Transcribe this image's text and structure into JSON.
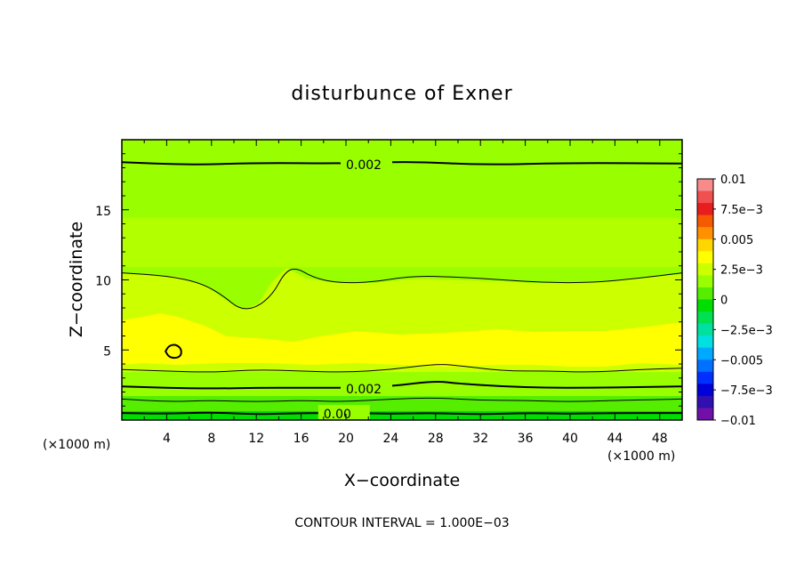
{
  "chart_data": {
    "type": "heatmap",
    "title": "disturbunce of Exner",
    "xlabel": "X−coordinate",
    "ylabel": "Z−coordinate",
    "x_unit_label_left": "(×1000 m)",
    "x_unit_label_right": "(×1000 m)",
    "xlim": [
      0,
      50
    ],
    "ylim": [
      0,
      20
    ],
    "xticks": [
      4,
      8,
      12,
      16,
      20,
      24,
      28,
      32,
      36,
      40,
      44,
      48
    ],
    "yticks": [
      5,
      10,
      15
    ],
    "footer": "CONTOUR INTERVAL = 1.000E−03",
    "colorbar": {
      "range": [
        -0.01,
        0.01
      ],
      "tick_values": [
        0.01,
        0.0075,
        0.005,
        0.0025,
        0,
        -0.0025,
        -0.005,
        -0.0075,
        -0.01
      ],
      "tick_labels": [
        "0.01",
        "7.5e−3",
        "0.005",
        "2.5e−3",
        "0",
        "−2.5e−3",
        "−0.005",
        "−7.5e−3",
        "−0.01"
      ],
      "colors": [
        "#f78a8a",
        "#f05050",
        "#e81e1e",
        "#f55a00",
        "#ff9000",
        "#ffd700",
        "#ffff00",
        "#ccff00",
        "#99ff00",
        "#55ee00",
        "#00dd00",
        "#00e050",
        "#00e0a0",
        "#00e0e0",
        "#00a8ff",
        "#0070ff",
        "#0030ff",
        "#0000d8",
        "#3010b0",
        "#7010a8"
      ]
    },
    "bands": [
      {
        "range": [
          0.003,
          0.004
        ],
        "color": "#ffff00"
      },
      {
        "range": [
          0.002,
          0.003
        ],
        "color": "#ccff00"
      },
      {
        "range": [
          0.001,
          0.002
        ],
        "color": "#99ff00"
      },
      {
        "range": [
          0.0,
          0.001
        ],
        "color": "#55ee00"
      },
      {
        "range": [
          -0.001,
          0.0
        ],
        "color": "#00dd00"
      }
    ],
    "contours": [
      {
        "level": 0.002,
        "label": "0.002",
        "label_x": 20,
        "label_y": 18.3,
        "points": [
          [
            0,
            18.4
          ],
          [
            6,
            18.2
          ],
          [
            12,
            18.35
          ],
          [
            20,
            18.3
          ],
          [
            26,
            18.45
          ],
          [
            32,
            18.2
          ],
          [
            40,
            18.35
          ],
          [
            50,
            18.3
          ]
        ]
      },
      {
        "level": 0.003,
        "points": [
          [
            0,
            10.5
          ],
          [
            4,
            10.3
          ],
          [
            7,
            9.8
          ],
          [
            9,
            8.9
          ],
          [
            10.5,
            7.9
          ],
          [
            12,
            8.0
          ],
          [
            13.5,
            9.0
          ],
          [
            14.5,
            10.5
          ],
          [
            15.5,
            10.9
          ],
          [
            17,
            10.2
          ],
          [
            19,
            9.8
          ],
          [
            22,
            9.8
          ],
          [
            26,
            10.3
          ],
          [
            30,
            10.2
          ],
          [
            34,
            10.0
          ],
          [
            38,
            9.8
          ],
          [
            42,
            9.8
          ],
          [
            46,
            10.1
          ],
          [
            50,
            10.5
          ]
        ]
      },
      {
        "level": 0.004,
        "points": [
          [
            3.9,
            4.9
          ],
          [
            4.2,
            5.3
          ],
          [
            4.8,
            5.4
          ],
          [
            5.3,
            5.1
          ],
          [
            5.3,
            4.6
          ],
          [
            4.8,
            4.4
          ],
          [
            4.2,
            4.5
          ],
          [
            3.9,
            4.9
          ]
        ],
        "closed": true
      },
      {
        "level": 0.003,
        "points": [
          [
            0,
            3.6
          ],
          [
            4,
            3.5
          ],
          [
            8,
            3.4
          ],
          [
            12,
            3.6
          ],
          [
            16,
            3.5
          ],
          [
            20,
            3.4
          ],
          [
            24,
            3.6
          ],
          [
            28,
            4.0
          ],
          [
            30,
            3.9
          ],
          [
            34,
            3.5
          ],
          [
            38,
            3.5
          ],
          [
            42,
            3.4
          ],
          [
            46,
            3.6
          ],
          [
            50,
            3.7
          ]
        ]
      },
      {
        "level": 0.002,
        "label": "0.002",
        "label_x": 20,
        "label_y": 2.3,
        "points": [
          [
            0,
            2.4
          ],
          [
            4,
            2.3
          ],
          [
            8,
            2.25
          ],
          [
            12,
            2.3
          ],
          [
            16,
            2.3
          ],
          [
            20,
            2.3
          ],
          [
            24,
            2.4
          ],
          [
            28,
            2.8
          ],
          [
            30,
            2.6
          ],
          [
            34,
            2.4
          ],
          [
            38,
            2.3
          ],
          [
            42,
            2.3
          ],
          [
            46,
            2.35
          ],
          [
            50,
            2.4
          ]
        ]
      },
      {
        "level": 0.001,
        "points": [
          [
            0,
            1.5
          ],
          [
            4,
            1.3
          ],
          [
            8,
            1.4
          ],
          [
            12,
            1.3
          ],
          [
            16,
            1.4
          ],
          [
            20,
            1.3
          ],
          [
            24,
            1.5
          ],
          [
            28,
            1.6
          ],
          [
            32,
            1.4
          ],
          [
            36,
            1.4
          ],
          [
            40,
            1.3
          ],
          [
            44,
            1.4
          ],
          [
            50,
            1.5
          ]
        ]
      },
      {
        "level": 0.0,
        "label": "0.00",
        "label_x": 18,
        "label_y": 0.5,
        "points": [
          [
            0,
            0.5
          ],
          [
            4,
            0.45
          ],
          [
            8,
            0.55
          ],
          [
            12,
            0.4
          ],
          [
            16,
            0.5
          ],
          [
            20,
            0.5
          ],
          [
            24,
            0.45
          ],
          [
            28,
            0.5
          ],
          [
            32,
            0.4
          ],
          [
            36,
            0.5
          ],
          [
            40,
            0.45
          ],
          [
            44,
            0.5
          ],
          [
            50,
            0.5
          ]
        ]
      }
    ]
  }
}
